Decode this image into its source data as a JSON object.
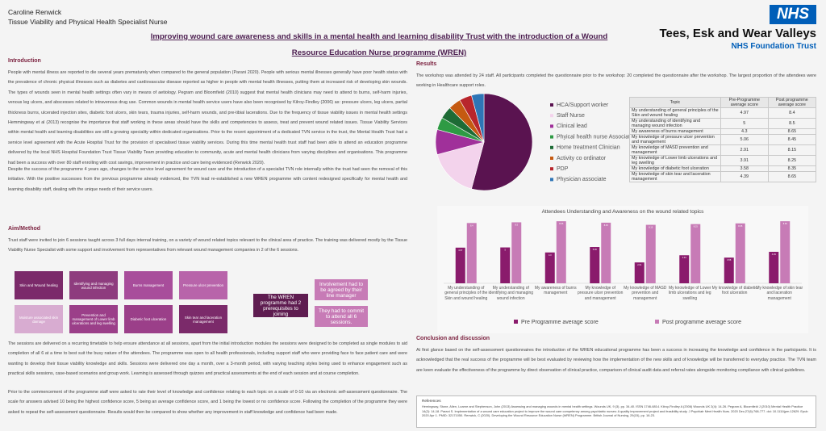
{
  "header": {
    "name": "Caroline Renwick",
    "role": "Tissue Viability and Physical Health Specialist Nurse",
    "title": "Improving wound care awareness and skills in a mental health and learning disability Trust with the introduction of a Wound Resource Education Nurse programme (WREN)"
  },
  "logo": {
    "badge": "NHS",
    "trust": "Tees, Esk and Wear Valleys",
    "subtitle": "NHS Foundation Trust"
  },
  "introduction": {
    "heading": "Introduction",
    "paragraphs": [
      "People with mental illness are reported to die several years prematurely when compared to the general population (Parani 2020). People with serious mental illnesses generally have poor health status with the prevalence of chronic physical illnesses such as diabetes and cardiovascular disease reported as higher in people with mental health illnesses, putting them at increased risk of developing skin wounds. The types of wounds seen in mental health settings often vary in means of aetiology. Pegram and Bloomfield (2010) suggest that mental health clinicians may need to attend to burns, self-harm injuries, venous leg ulcers, and abscesses related to intravenous drug use. Common wounds in mental health service users have also been recognised by Kilroy-Findley (2006) as: pressure ulcers, leg ulcers, partial thickness burns, ulcerated injection sites, diabetic foot ulcers, skin tears, trauma injuries, self-harm wounds, and pre-tibial lacerations. Due to the frequency of tissue viability issues in mental health settings Hemmingway et al (2013) recognise the importance that staff working in these areas should have the skills and competencies to assess, treat and prevent wound related issues. Tissue Viability Services within mental health and learning disabilities are still a growing speciality within dedicated organisations. Prior to the recent appointment of a dedicated TVN service in the trust, the Mental Health Trust had a service level agreement with the Acute Hospital Trust for the provision of specialised tissue viability services. During this time mental health trust staff had been able to attend an education programme delivered by the local NHS Hospital Foundation Trust Tissue Viability Team providing education to community, acute and mental health clinicians from varying disciplines and organisations. This programme had been a success with over 80 staff enrolling with cost savings, improvement in practice and care being evidenced (Renwick 2020).",
      "Despite the success of the programme 4 years ago, changes to the service level agreement for wound care and the introduction of a specialist TVN role internally within the trust had seen the removal of this initiative. With the positive successes from the previous programme already evidenced, the TVN lead re-established a new WREN programme with content redesigned specifically for mental health and learning disability staff, dealing with the unique needs of their service users."
    ]
  },
  "aim_method": {
    "heading": "Aim/Method",
    "intro": "Trust staff were invited to join 6 sessions taught across 3 full days internal training, on a variety of wound related topics relevant to the clinical area of practice. The training was delivered mostly by the Tissue Viability Nurse Specialist with some support and involvement from representatives from relevant wound management companies in 2 of the 6 sessions.",
    "topics": [
      "Skin and Wound healing",
      "Identifying and managing wound infection",
      "Burns management",
      "Pressure ulcer prevention",
      "Moisture associated skin damage",
      "Prevention and management of Lower limb ulcerations and leg swelling",
      "Diabetic foot ulceration",
      "Skin tear and laceration management"
    ],
    "prerequisites": {
      "lead": "The WREN programme had 2 prerequisites to joining",
      "items": [
        "Involvement had to be agreed by their line manager",
        "They had to commit to attend all 6 sessions."
      ]
    },
    "paragraphs": [
      "The sessions are delivered on a recurring timetable to help ensure attendance at all sessions, apart from the initial introduction modules the sessions were designed to be completed as single modules to aid completion of all 6 at a time to best suit the busy nature of the attendees. The programme was open to all health professionals, including support staff who were providing face to face patient care and were wanting to develop their tissue viability knowledge and skills. Sessions were delivered one day a month, over a 3-month period, with varying teaching styles being used to enhance engagement such as practical skills sessions, case-based scenarios and group work. Learning is assessed through quizzes and practical assessments at the end of each session and at course completion.",
      "Prior to the commencement of the programme staff were asked to rate their level of knowledge and confidence relating to each topic on a scale of 0-10 via an electronic self-assessment questionnaire. The scale for answers advised 10 being the highest confidence score, 5 being an average confidence score, and 1 being the lowest or no confidence score. Following the completion of the programme they were asked to repeat the self-assessment questionnaire. Results would then be compared to show whether any improvement in staff knowledge and confidence had been made."
    ]
  },
  "results": {
    "heading": "Results",
    "paragraph": "The workshop was attended by 24 staff. All participants completed the questionnaire prior to the workshop: 20 completed the questionnaire after the workshop. The largest proportion of the attendees were working in Healthcare support roles.",
    "table": {
      "header": [
        "Topic",
        "Pre-Programme average score",
        "Post programme average score"
      ],
      "rows": [
        [
          "My understanding of general principles of the Skin and wound healing",
          "4.97",
          "8.4"
        ],
        [
          "My understanding of identifying and managing wound infection",
          "5",
          "8.5"
        ],
        [
          "My awareness of burns management",
          "4.3",
          "8.65"
        ],
        [
          "My knowledge of pressure ulcer prevention and management",
          "5.06",
          "8.45"
        ],
        [
          "My knowledge of MASD prevention and management",
          "2.91",
          "8.15"
        ],
        [
          "My knowledge of Lower limb ulcerations and leg swelling",
          "3.91",
          "8.25"
        ],
        [
          "My knowledge of diabetic foot ulceration",
          "3.58",
          "8.35"
        ],
        [
          "My knowledge of skin tear and laceration management",
          "4.39",
          "8.65"
        ]
      ]
    }
  },
  "conclusion": {
    "heading": "Conclusion and discussion",
    "paragraph": "At first glance based on the self-assessment questionnaires the introduction of the WREN educational programme has been a success in increasing the knowledge and confidence in the participants. It is acknowledged that the real success of the programme will be best evaluated by reviewing how the implementation of the new skills and of knowledge will be transferred to everyday practice. The TVN team are keen evaluate the effectiveness of the programme by direct observation of clinical practice, comparison of clinical audit data and referral rates alongside monitoring compliance with clinical guidelines."
  },
  "references": {
    "heading": "References",
    "text": "Hemingway, Stone, Allen, Loarne and Stephenson, John (2013) Assessing and managing wounds in mental health settings. Wounds UK, 9 (3). pp. 34-40. ISSN 1746-6814. Kilroy-Findley A (2006) Wounds UK 2(4): 14-26. Pegram A, Bloomfield J (2010) Mental Health Practice 14(2): 14-18. Parani S. Implementation of a wound care education project to improve the wound care competency among psychiatric nurses: A quality improvement project and feasibility study. J Psychiatr Ment Health Nurs. 2020 Dec;27(6):768-777. doi: 10.1111/jpm.12629. Epub 2020 Apr 1. PMID: 32171050. Renwick, C (2020). Developing the Wound Resource Education Nurse (WREN) Programme. British Journal of Nursing, 29(15), pp. 16-23."
  },
  "chart_data": [
    {
      "type": "pie",
      "categories": [
        "HCA/Support worker",
        "Staff Nurse",
        "Clinical lead",
        "Phyical health nurse Associate",
        "Home treatment Clinician",
        "Activity co ordinator",
        "PDP",
        "Physician associate"
      ],
      "values": [
        13,
        4,
        2,
        1,
        1,
        1,
        1,
        1
      ],
      "colors": [
        "#5a1350",
        "#f3d3ec",
        "#a0309a",
        "#2e9a44",
        "#1d6b35",
        "#c55a11",
        "#b8262c",
        "#2e75b6"
      ]
    },
    {
      "type": "bar",
      "title": "Attendees Understanding and Awareness on the wound related topics",
      "categories": [
        "My understanding of general principles of the Skin and wound healing",
        "My understanding of identifying and managing wound infection",
        "My awareness of burns management",
        "My knowledge of pressure ulcer prevention and management",
        "My knowledge of MASD prevention and management",
        "My knowledge of Lower limb ulcerations and leg swelling",
        "My knowledge of diabetic foot ulceration",
        "My knowledge of skin tear and laceration management"
      ],
      "series": [
        {
          "name": "Pre Programme average score",
          "color": "#8a1b6c",
          "values": [
            4.97,
            5,
            4.3,
            5.06,
            2.91,
            3.91,
            3.58,
            4.39
          ]
        },
        {
          "name": "Post programme average score",
          "color": "#c77bb6",
          "values": [
            8.4,
            8.5,
            8.65,
            8.45,
            8.15,
            8.25,
            8.35,
            8.65
          ]
        }
      ],
      "ylim": [
        0,
        9
      ],
      "grid": false
    }
  ]
}
